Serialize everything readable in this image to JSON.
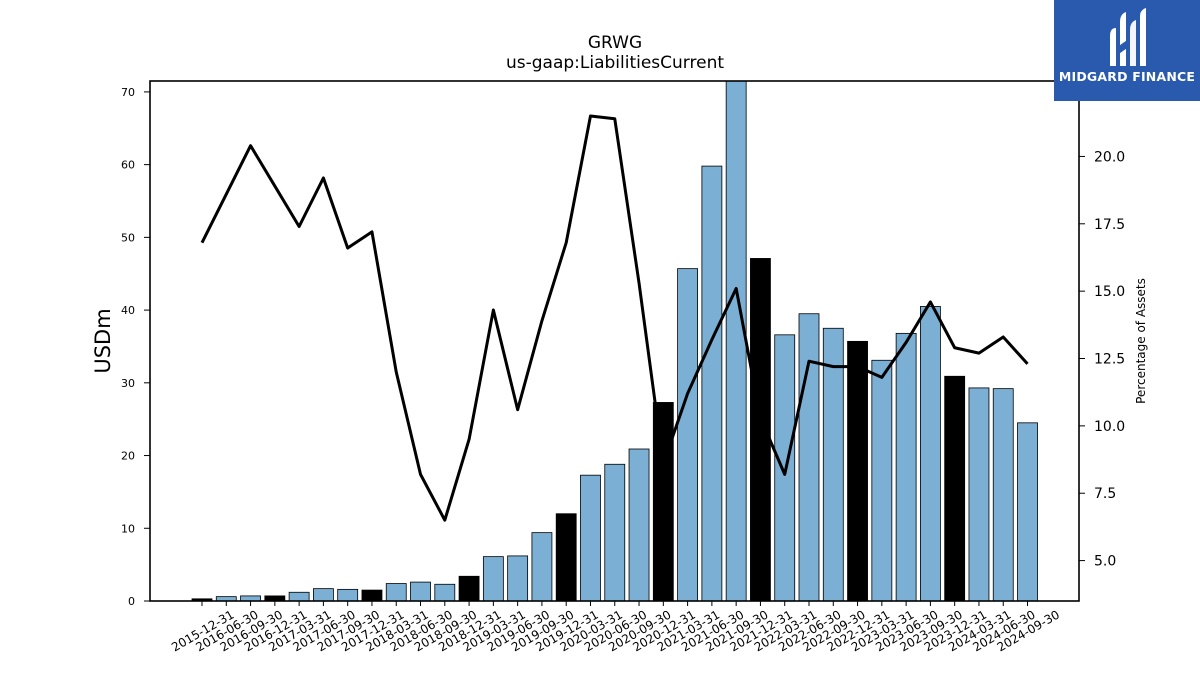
{
  "chart_data": {
    "type": "bar+line",
    "title": "GRWG",
    "subtitle": "us-gaap:LiabilitiesCurrent",
    "ylabel": "USDm",
    "y2label": "Percentage of Assets",
    "ylim": [
      0,
      71.5
    ],
    "y2lim": [
      3.5,
      22.8
    ],
    "yticks": [
      0,
      10,
      20,
      30,
      40,
      50,
      60,
      70
    ],
    "y2ticks": [
      5.0,
      7.5,
      10.0,
      12.5,
      15.0,
      17.5,
      20.0
    ],
    "colors": {
      "bar": "#7bafd4",
      "bar_highlight": "#000000",
      "line": "#000000"
    },
    "categories": [
      "2015-12-31",
      "2016-06-30",
      "2016-09-30",
      "2016-12-31",
      "2017-03-31",
      "2017-06-30",
      "2017-09-30",
      "2017-12-31",
      "2018-03-31",
      "2018-06-30",
      "2018-09-30",
      "2018-12-31",
      "2019-03-31",
      "2019-06-30",
      "2019-09-30",
      "2019-12-31",
      "2020-03-31",
      "2020-06-30",
      "2020-09-30",
      "2020-12-31",
      "2021-03-31",
      "2021-06-30",
      "2021-09-30",
      "2021-12-31",
      "2022-03-31",
      "2022-06-30",
      "2022-09-30",
      "2022-12-31",
      "2023-03-31",
      "2023-06-30",
      "2023-09-30",
      "2023-12-31",
      "2024-03-31",
      "2024-06-30",
      "2024-09-30"
    ],
    "series": [
      {
        "type": "bar",
        "values": [
          0.3,
          0.6,
          0.7,
          0.7,
          1.2,
          1.7,
          1.6,
          1.5,
          2.4,
          2.6,
          2.3,
          3.4,
          6.1,
          6.2,
          9.4,
          12.0,
          17.3,
          18.8,
          20.9,
          27.3,
          45.7,
          59.8,
          72.5,
          47.1,
          36.6,
          39.5,
          37.5,
          35.7,
          33.1,
          36.8,
          40.5,
          30.9,
          29.3,
          29.2,
          24.5
        ],
        "highlight": [
          true,
          false,
          false,
          true,
          false,
          false,
          false,
          true,
          false,
          false,
          false,
          true,
          false,
          false,
          false,
          true,
          false,
          false,
          false,
          true,
          false,
          false,
          false,
          true,
          false,
          false,
          false,
          true,
          false,
          false,
          false,
          true,
          false,
          false,
          false
        ]
      },
      {
        "type": "line",
        "axis": "right",
        "values": [
          16.8,
          18.6,
          20.4,
          18.9,
          17.4,
          19.2,
          16.6,
          17.2,
          12.0,
          8.2,
          6.5,
          9.5,
          14.3,
          10.6,
          13.9,
          16.8,
          21.5,
          21.4,
          15.3,
          8.6,
          11.2,
          13.2,
          15.1,
          10.3,
          8.2,
          12.4,
          12.2,
          12.2,
          11.8,
          13.1,
          14.6,
          12.9,
          12.7,
          13.3,
          12.3
        ]
      }
    ]
  },
  "logo": {
    "text": "MIDGARD FINANCE"
  }
}
